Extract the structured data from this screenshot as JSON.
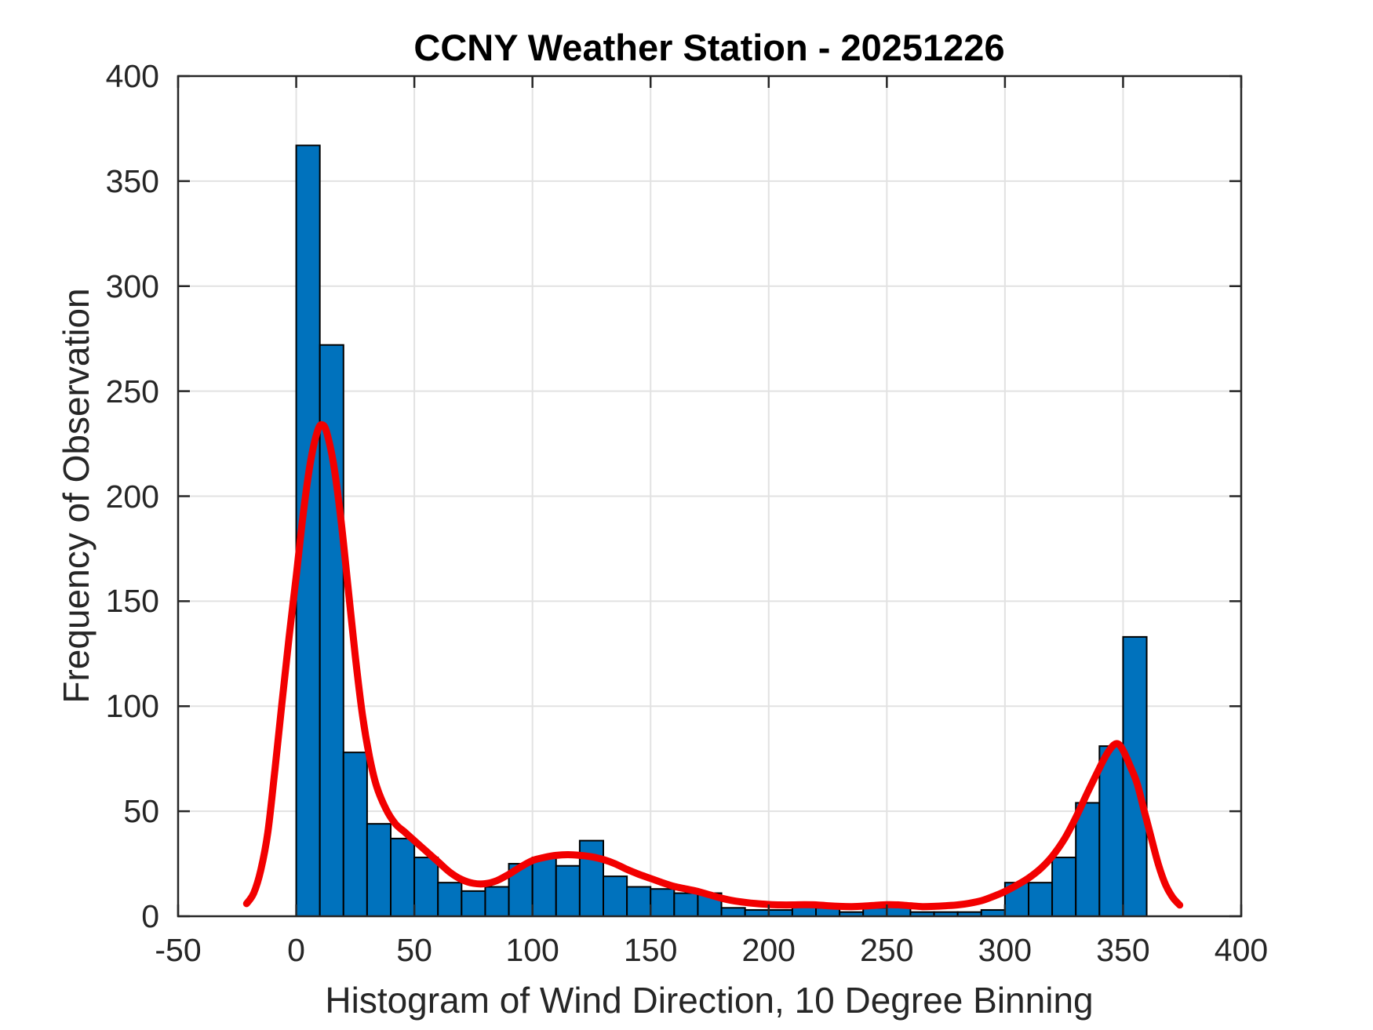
{
  "figure": {
    "background": "#ffffff"
  },
  "chart_data": {
    "type": "bar",
    "subtype": "histogram-with-density-line",
    "title": "CCNY Weather Station - 20251226",
    "xlabel": "Histogram of Wind Direction, 10 Degree Binning",
    "ylabel": "Frequency of Observation",
    "xlim": [
      -50,
      400
    ],
    "ylim": [
      0,
      400
    ],
    "x_ticks": [
      -50,
      0,
      50,
      100,
      150,
      200,
      250,
      300,
      350,
      400
    ],
    "y_ticks": [
      0,
      50,
      100,
      150,
      200,
      250,
      300,
      350,
      400
    ],
    "grid": true,
    "legend": "none",
    "bin_start": 0,
    "bin_width": 10,
    "categories": [
      "0-10",
      "10-20",
      "20-30",
      "30-40",
      "40-50",
      "50-60",
      "60-70",
      "70-80",
      "80-90",
      "90-100",
      "100-110",
      "110-120",
      "120-130",
      "130-140",
      "140-150",
      "150-160",
      "160-170",
      "170-180",
      "180-190",
      "190-200",
      "200-210",
      "210-220",
      "220-230",
      "230-240",
      "240-250",
      "250-260",
      "260-270",
      "270-280",
      "280-290",
      "290-300",
      "300-310",
      "310-320",
      "320-330",
      "330-340",
      "340-350",
      "350-360"
    ],
    "values": [
      367,
      272,
      78,
      44,
      37,
      28,
      16,
      12,
      14,
      25,
      28,
      24,
      36,
      19,
      14,
      13,
      11,
      11,
      4,
      3,
      3,
      6,
      4,
      2,
      4,
      6,
      2,
      2,
      2,
      3,
      16,
      16,
      28,
      54,
      81,
      133
    ],
    "density_line_points": [
      [
        -21,
        6
      ],
      [
        -18,
        11
      ],
      [
        -15,
        22
      ],
      [
        -12,
        40
      ],
      [
        -9,
        70
      ],
      [
        -6,
        102
      ],
      [
        -3,
        133
      ],
      [
        0,
        162
      ],
      [
        3,
        192
      ],
      [
        6,
        216
      ],
      [
        9,
        231
      ],
      [
        11,
        234
      ],
      [
        13,
        230
      ],
      [
        16,
        214
      ],
      [
        19,
        188
      ],
      [
        22,
        156
      ],
      [
        25,
        124
      ],
      [
        28,
        96
      ],
      [
        31,
        76
      ],
      [
        34,
        62
      ],
      [
        38,
        51
      ],
      [
        42,
        44
      ],
      [
        46,
        40
      ],
      [
        50,
        36
      ],
      [
        55,
        31
      ],
      [
        60,
        26
      ],
      [
        65,
        21
      ],
      [
        70,
        17.5
      ],
      [
        75,
        15.7
      ],
      [
        80,
        15.5
      ],
      [
        85,
        17
      ],
      [
        90,
        20
      ],
      [
        95,
        23.5
      ],
      [
        100,
        26.5
      ],
      [
        105,
        28
      ],
      [
        110,
        29
      ],
      [
        115,
        29.3
      ],
      [
        120,
        29
      ],
      [
        125,
        28.3
      ],
      [
        130,
        27
      ],
      [
        135,
        25
      ],
      [
        140,
        22.3
      ],
      [
        145,
        20
      ],
      [
        150,
        18
      ],
      [
        155,
        16
      ],
      [
        160,
        14.2
      ],
      [
        165,
        13
      ],
      [
        170,
        11.8
      ],
      [
        175,
        10.2
      ],
      [
        180,
        8.6
      ],
      [
        185,
        7.4
      ],
      [
        190,
        6.6
      ],
      [
        195,
        6
      ],
      [
        200,
        5.6
      ],
      [
        205,
        5.4
      ],
      [
        210,
        5.4
      ],
      [
        215,
        5.5
      ],
      [
        220,
        5.4
      ],
      [
        225,
        5
      ],
      [
        230,
        4.7
      ],
      [
        235,
        4.6
      ],
      [
        240,
        4.8
      ],
      [
        245,
        5.2
      ],
      [
        250,
        5.5
      ],
      [
        255,
        5.4
      ],
      [
        260,
        5
      ],
      [
        265,
        4.6
      ],
      [
        270,
        4.7
      ],
      [
        275,
        5
      ],
      [
        280,
        5.4
      ],
      [
        285,
        6.2
      ],
      [
        290,
        7.4
      ],
      [
        295,
        9.4
      ],
      [
        300,
        11.8
      ],
      [
        305,
        14.8
      ],
      [
        310,
        18.2
      ],
      [
        315,
        22.6
      ],
      [
        320,
        28.5
      ],
      [
        325,
        36.5
      ],
      [
        330,
        47
      ],
      [
        335,
        59
      ],
      [
        340,
        70.5
      ],
      [
        343,
        77
      ],
      [
        346,
        81.5
      ],
      [
        348,
        82
      ],
      [
        350,
        79
      ],
      [
        353,
        71.5
      ],
      [
        356,
        63
      ],
      [
        359,
        50
      ],
      [
        362,
        37
      ],
      [
        365,
        24.5
      ],
      [
        368,
        15
      ],
      [
        371,
        9
      ],
      [
        374,
        5.3
      ]
    ],
    "colors": {
      "bar_fill": "#0072BD",
      "bar_edge": "#000000",
      "line": "#F20000",
      "grid": "#E2E2E2",
      "axis": "#262626",
      "tick_label": "#262626",
      "title": "#000000"
    }
  }
}
